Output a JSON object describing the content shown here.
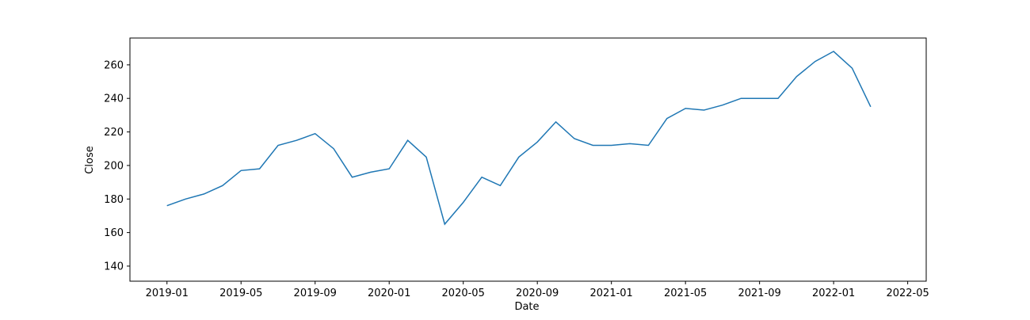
{
  "chart_data": {
    "type": "line",
    "x_label": "Date",
    "y_label": "Close",
    "x": [
      "2019-01",
      "2019-02",
      "2019-03",
      "2019-04",
      "2019-05",
      "2019-06",
      "2019-07",
      "2019-08",
      "2019-09",
      "2019-10",
      "2019-11",
      "2019-12",
      "2020-01",
      "2020-02",
      "2020-03",
      "2020-04",
      "2020-05",
      "2020-06",
      "2020-07",
      "2020-08",
      "2020-09",
      "2020-10",
      "2020-11",
      "2020-12",
      "2021-01",
      "2021-02",
      "2021-03",
      "2021-04",
      "2021-05",
      "2021-06",
      "2021-07",
      "2021-08",
      "2021-09",
      "2021-10",
      "2021-11",
      "2021-12",
      "2022-01",
      "2022-02",
      "2022-03"
    ],
    "series": [
      {
        "name": "Close",
        "color": "#1f77b4",
        "values": [
          176,
          180,
          183,
          188,
          197,
          198,
          212,
          215,
          219,
          210,
          193,
          196,
          198,
          215,
          205,
          165,
          178,
          193,
          188,
          205,
          214,
          226,
          216,
          212,
          212,
          213,
          212,
          228,
          234,
          233,
          236,
          240,
          240,
          240,
          253,
          262,
          268,
          258,
          235
        ]
      }
    ],
    "xlim": [
      "2018-11",
      "2022-06"
    ],
    "xticks": [
      "2019-01",
      "2019-05",
      "2019-09",
      "2020-01",
      "2020-05",
      "2020-09",
      "2021-01",
      "2021-05",
      "2021-09",
      "2022-01",
      "2022-05"
    ],
    "ylim": [
      131,
      276
    ],
    "yticks": [
      140,
      160,
      180,
      200,
      220,
      240,
      260
    ]
  }
}
